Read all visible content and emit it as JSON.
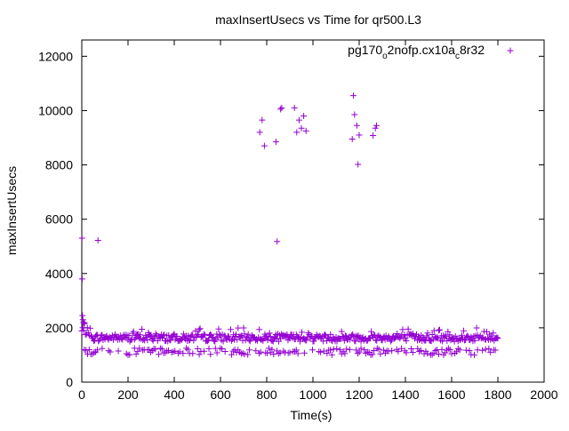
{
  "chart_data": {
    "type": "scatter",
    "title": "maxInsertUsecs vs Time for qr500.L3",
    "xlabel": "Time(s)",
    "ylabel": "maxInsertUsecs",
    "xlim": [
      0,
      2000
    ],
    "ylim": [
      0,
      12600
    ],
    "x_ticks": [
      "0",
      "200",
      "400",
      "600",
      "800",
      "1000",
      "1200",
      "1400",
      "1600",
      "1800",
      "2000"
    ],
    "y_ticks": [
      "0",
      "2000",
      "4000",
      "6000",
      "8000",
      "10000",
      "12000"
    ],
    "grid": false,
    "legend_position": "top-right",
    "legend_marker": "+",
    "series": [
      {
        "name_main": "pg170",
        "name_sub1": "o",
        "name_mid": "2nofp.cx10a",
        "name_sub2": "c",
        "name_tail": "8r32",
        "color": "#9400d3",
        "marker": "+",
        "outliers": [
          [
            1,
            5300
          ],
          [
            2,
            3800
          ],
          [
            3,
            2450
          ],
          [
            5,
            2300
          ],
          [
            7,
            2200
          ],
          [
            10,
            2150
          ],
          [
            70,
            5220
          ],
          [
            770,
            9200
          ],
          [
            780,
            9650
          ],
          [
            790,
            8700
          ],
          [
            840,
            8850
          ],
          [
            845,
            5180
          ],
          [
            860,
            10050
          ],
          [
            865,
            10100
          ],
          [
            920,
            10100
          ],
          [
            930,
            9200
          ],
          [
            940,
            9650
          ],
          [
            950,
            9350
          ],
          [
            960,
            9800
          ],
          [
            970,
            9250
          ],
          [
            1170,
            8950
          ],
          [
            1175,
            10550
          ],
          [
            1180,
            9850
          ],
          [
            1190,
            9450
          ],
          [
            1195,
            8020
          ],
          [
            1200,
            9100
          ],
          [
            1260,
            9080
          ],
          [
            1270,
            9350
          ],
          [
            1275,
            9450
          ]
        ],
        "band_upper_usecs": [
          1450,
          1950
        ],
        "band_lower_usecs": [
          1000,
          1250
        ],
        "x_range": [
          0,
          1800
        ]
      }
    ]
  }
}
